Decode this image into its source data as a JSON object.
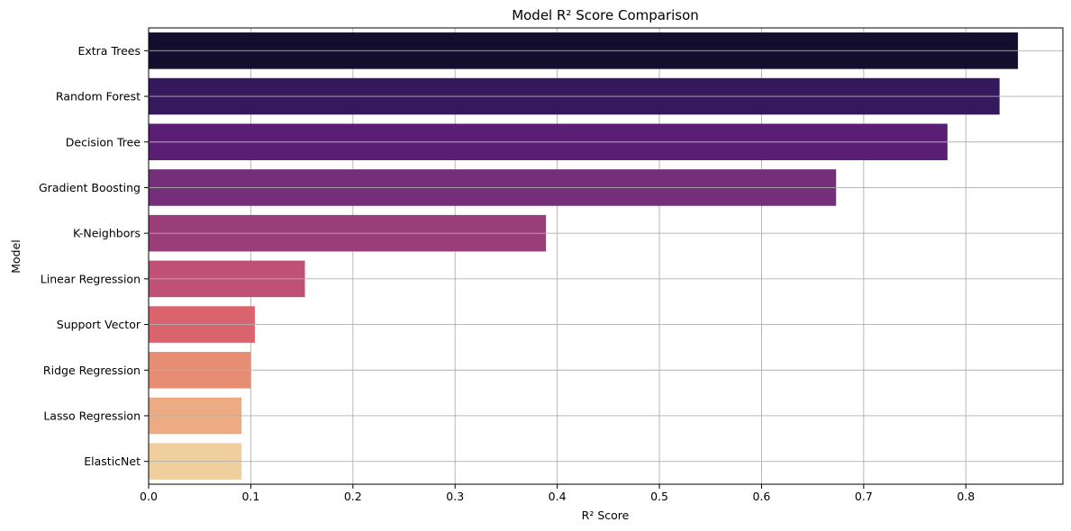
{
  "chart_data": {
    "type": "bar",
    "orientation": "horizontal",
    "title": "Model R² Score Comparison",
    "xlabel": "R² Score",
    "ylabel": "Model",
    "categories": [
      "Extra Trees",
      "Random Forest",
      "Decision Tree",
      "Gradient Boosting",
      "K-Neighbors",
      "Linear Regression",
      "Support Vector",
      "Ridge Regression",
      "Lasso Regression",
      "ElasticNet"
    ],
    "values": [
      0.851,
      0.833,
      0.782,
      0.673,
      0.389,
      0.153,
      0.104,
      0.1,
      0.091,
      0.091
    ],
    "colors": [
      "#140f2e",
      "#341a5c",
      "#5a1f75",
      "#752e79",
      "#9a3e7a",
      "#bf5076",
      "#d9646e",
      "#e78d74",
      "#ecab83",
      "#f0cf9f"
    ],
    "xlim": [
      0,
      0.895
    ],
    "xticks": [
      0.0,
      0.1,
      0.2,
      0.3,
      0.4,
      0.5,
      0.6,
      0.7,
      0.8
    ],
    "xtick_labels": [
      "0.0",
      "0.1",
      "0.2",
      "0.3",
      "0.4",
      "0.5",
      "0.6",
      "0.7",
      "0.8"
    ],
    "grid": true,
    "legend": "none"
  }
}
